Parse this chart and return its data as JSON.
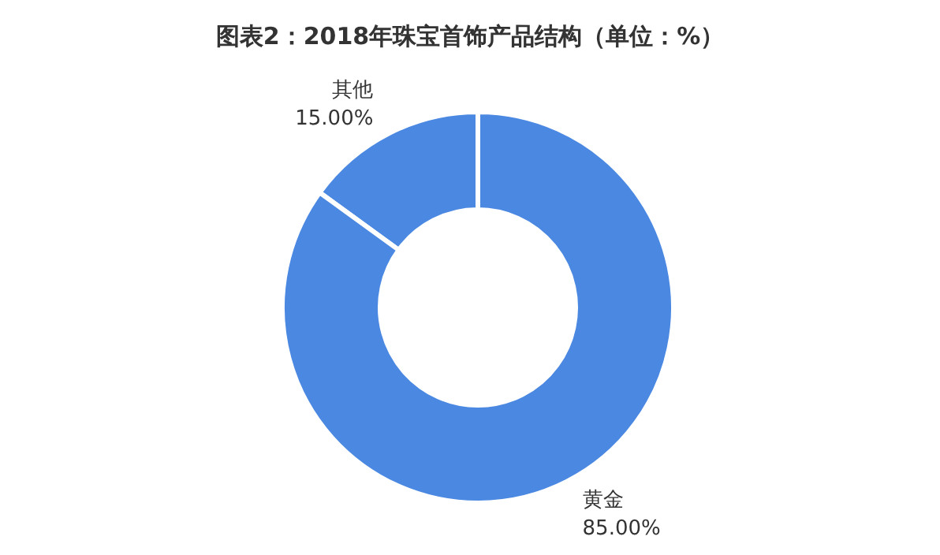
{
  "chart_data": {
    "type": "donut",
    "title": "图表2：2018年珠宝首饰产品结构（单位：%）",
    "categories": [
      "其他",
      "黄金"
    ],
    "values": [
      15,
      85
    ],
    "value_labels": [
      "15.00%",
      "85.00%"
    ],
    "colors": [
      "#4a88e2",
      "#4a88e2"
    ]
  }
}
